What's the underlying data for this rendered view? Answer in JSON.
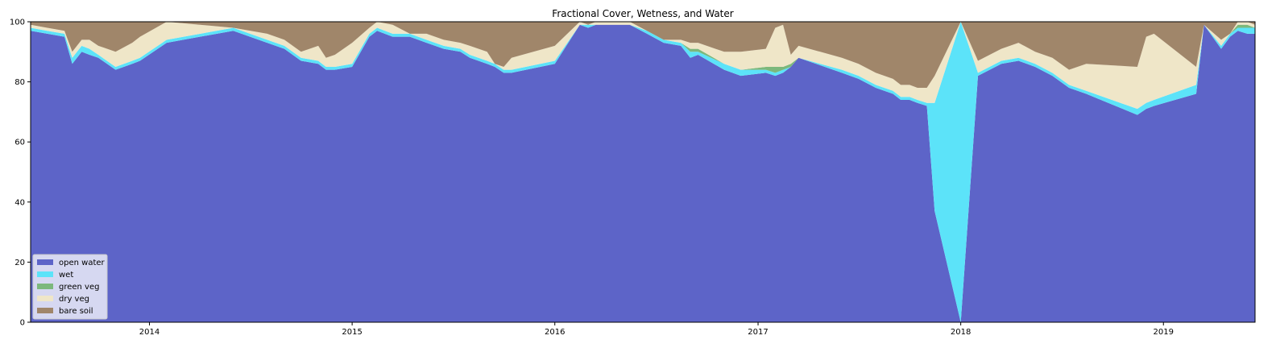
{
  "chart_data": {
    "type": "area",
    "stacked": true,
    "title": "Fractional Cover, Wetness, and Water",
    "xlabel": "",
    "ylabel": "",
    "xlim": [
      "2013-06-01",
      "2019-06-15"
    ],
    "ylim": [
      0,
      100
    ],
    "xticks": [
      "2014",
      "2015",
      "2016",
      "2017",
      "2018",
      "2019"
    ],
    "yticks": [
      0,
      20,
      40,
      60,
      80,
      100
    ],
    "grid": false,
    "legend_position": "lower-left",
    "x": [
      "2013-06-01",
      "2013-07-01",
      "2013-08-01",
      "2013-08-15",
      "2013-09-01",
      "2013-09-15",
      "2013-10-01",
      "2013-11-01",
      "2013-12-01",
      "2013-12-15",
      "2014-02-01",
      "2014-06-01",
      "2014-08-01",
      "2014-09-01",
      "2014-10-01",
      "2014-11-01",
      "2014-11-15",
      "2014-12-01",
      "2015-01-01",
      "2015-02-01",
      "2015-02-15",
      "2015-03-15",
      "2015-04-15",
      "2015-05-15",
      "2015-06-15",
      "2015-07-15",
      "2015-08-01",
      "2015-09-01",
      "2015-09-15",
      "2015-10-01",
      "2015-10-15",
      "2016-01-01",
      "2016-02-15",
      "2016-03-01",
      "2016-03-15",
      "2016-05-15",
      "2016-06-15",
      "2016-07-15",
      "2016-08-15",
      "2016-09-01",
      "2016-09-15",
      "2016-11-01",
      "2016-12-01",
      "2017-01-15",
      "2017-02-01",
      "2017-02-15",
      "2017-03-01",
      "2017-03-15",
      "2017-06-01",
      "2017-07-01",
      "2017-08-01",
      "2017-09-01",
      "2017-09-15",
      "2017-10-01",
      "2017-10-15",
      "2017-11-01",
      "2017-11-15",
      "2018-01-01",
      "2018-02-01",
      "2018-03-15",
      "2018-04-15",
      "2018-05-15",
      "2018-06-15",
      "2018-07-15",
      "2018-08-15",
      "2018-11-15",
      "2018-12-01",
      "2018-12-15",
      "2019-03-01",
      "2019-03-15",
      "2019-04-15",
      "2019-05-01",
      "2019-05-15",
      "2019-06-01",
      "2019-06-15"
    ],
    "series": [
      {
        "name": "open water",
        "color": "#5d64c8",
        "values": [
          97,
          96,
          95,
          86,
          90,
          89,
          88,
          84,
          86,
          87,
          93,
          97,
          93,
          91,
          87,
          86,
          84,
          84,
          85,
          95,
          97,
          95,
          95,
          93,
          91,
          90,
          88,
          86,
          85,
          83,
          83,
          86,
          99,
          98,
          99,
          99,
          96,
          93,
          92,
          88,
          89,
          84,
          82,
          83,
          82,
          83,
          85,
          88,
          83,
          81,
          78,
          76,
          74,
          74,
          73,
          72,
          37,
          0,
          82,
          86,
          87,
          85,
          82,
          78,
          76,
          69,
          71,
          72,
          76,
          99,
          91,
          95,
          97,
          96,
          96
        ]
      },
      {
        "name": "wet",
        "color": "#5ce3f9",
        "values": [
          1,
          1,
          1,
          2,
          2,
          2,
          1,
          1,
          1,
          1,
          1,
          1,
          1,
          1,
          1,
          1,
          1,
          1,
          1,
          1,
          1,
          1,
          1,
          1,
          1,
          1,
          1,
          1,
          1,
          1,
          1,
          1,
          0,
          1,
          0,
          0,
          1,
          1,
          1,
          2,
          1,
          2,
          2,
          1,
          1,
          1,
          0,
          0,
          1,
          1,
          1,
          1,
          1,
          1,
          1,
          1,
          36,
          100,
          1,
          1,
          1,
          1,
          1,
          1,
          1,
          2,
          2,
          2,
          3,
          0,
          1,
          1,
          1,
          2,
          2
        ]
      },
      {
        "name": "green veg",
        "color": "#7cb87c",
        "values": [
          0,
          0,
          0,
          0,
          0,
          0,
          0,
          0,
          0,
          0,
          0,
          0,
          0,
          0,
          0,
          0,
          0,
          0,
          0,
          0,
          0,
          0,
          0,
          0,
          0,
          0,
          0,
          0,
          0,
          0,
          0,
          0,
          0,
          0,
          0,
          0,
          0,
          0,
          0,
          1,
          1,
          0,
          0,
          1,
          2,
          1,
          1,
          0,
          0,
          0,
          0,
          0,
          0,
          0,
          0,
          0,
          0,
          0,
          0,
          0,
          0,
          0,
          0,
          0,
          0,
          0,
          0,
          0,
          0,
          0,
          0,
          0,
          1,
          1,
          0
        ]
      },
      {
        "name": "dry veg",
        "color": "#efe6c8",
        "values": [
          1,
          1,
          1,
          2,
          2,
          3,
          3,
          5,
          6,
          7,
          6,
          0,
          2,
          2,
          2,
          5,
          3,
          4,
          7,
          2,
          2,
          3,
          0,
          2,
          2,
          2,
          3,
          3,
          0,
          1,
          4,
          5,
          1,
          0,
          1,
          1,
          0,
          0,
          1,
          2,
          2,
          4,
          6,
          6,
          13,
          14,
          3,
          4,
          4,
          4,
          4,
          4,
          4,
          4,
          4,
          5,
          9,
          0,
          4,
          4,
          5,
          4,
          5,
          5,
          9,
          14,
          22,
          22,
          6,
          0,
          2,
          0,
          1,
          1,
          1
        ]
      },
      {
        "name": "bare soil",
        "color": "#a0866a",
        "values": [
          1,
          2,
          3,
          10,
          6,
          6,
          8,
          10,
          7,
          5,
          0,
          2,
          4,
          6,
          10,
          8,
          12,
          11,
          7,
          2,
          0,
          1,
          4,
          4,
          6,
          7,
          8,
          10,
          14,
          15,
          12,
          8,
          0,
          1,
          0,
          0,
          3,
          6,
          6,
          7,
          7,
          10,
          10,
          9,
          2,
          1,
          11,
          8,
          12,
          14,
          17,
          19,
          21,
          21,
          22,
          22,
          18,
          0,
          13,
          9,
          7,
          10,
          12,
          16,
          14,
          15,
          5,
          4,
          15,
          1,
          6,
          4,
          0,
          0,
          1
        ]
      }
    ]
  }
}
